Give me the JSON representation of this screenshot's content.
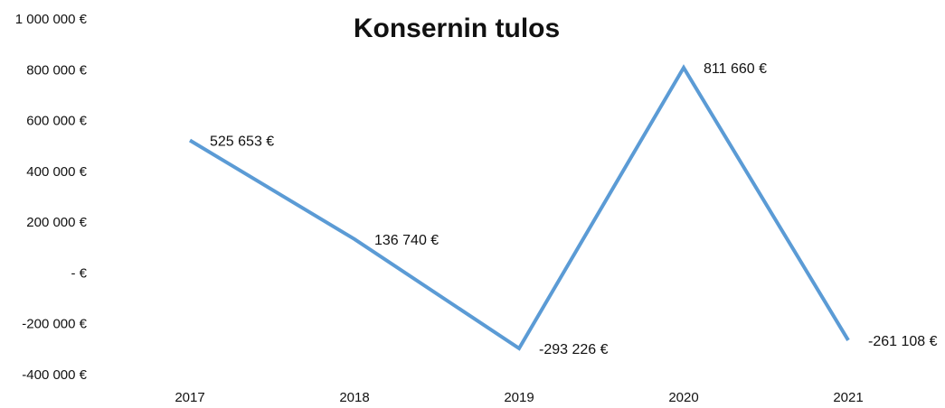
{
  "chart_data": {
    "type": "line",
    "title": "Konsernin tulos",
    "categories": [
      "2017",
      "2018",
      "2019",
      "2020",
      "2021"
    ],
    "values": [
      525653,
      136740,
      -293226,
      811660,
      -261108
    ],
    "value_labels": [
      "525 653 €",
      "136 740 €",
      "-293 226 €",
      "811 660 €",
      "-261 108 €"
    ],
    "color": "#5b9bd5",
    "ylim": [
      -400000,
      1000000
    ],
    "yticks": [
      {
        "value": -400000,
        "label": "-400 000 €"
      },
      {
        "value": -200000,
        "label": "-200 000 €"
      },
      {
        "value": 0,
        "label": "-   €"
      },
      {
        "value": 200000,
        "label": "200 000 €"
      },
      {
        "value": 400000,
        "label": "400 000 €"
      },
      {
        "value": 600000,
        "label": "600 000 €"
      },
      {
        "value": 800000,
        "label": "800 000 €"
      },
      {
        "value": 1000000,
        "label": "1 000 000 €"
      }
    ],
    "grid": false
  }
}
